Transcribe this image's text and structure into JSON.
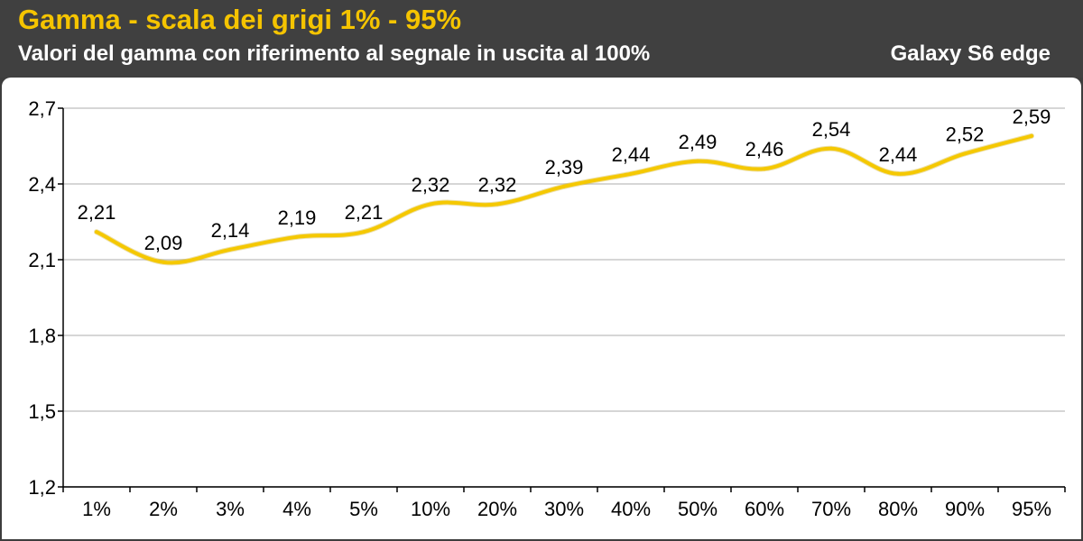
{
  "header": {
    "title": "Gamma - scala dei grigi 1% - 95%",
    "subtitle": "Valori del gamma con riferimento al segnale in uscita al 100%",
    "device": "Galaxy S6 edge"
  },
  "colors": {
    "header_bg": "#404040",
    "title": "#f5c400",
    "line": "#f5c800",
    "grid": "#c8c8c8"
  },
  "chart_data": {
    "type": "line",
    "title": "Gamma - scala dei grigi 1% - 95%",
    "subtitle": "Valori del gamma con riferimento al segnale in uscita al 100%",
    "categories": [
      "1%",
      "2%",
      "3%",
      "4%",
      "5%",
      "10%",
      "20%",
      "30%",
      "40%",
      "50%",
      "60%",
      "70%",
      "80%",
      "90%",
      "95%"
    ],
    "series": [
      {
        "name": "Galaxy S6 edge",
        "values": [
          2.21,
          2.09,
          2.14,
          2.19,
          2.21,
          2.32,
          2.32,
          2.39,
          2.44,
          2.49,
          2.46,
          2.54,
          2.44,
          2.52,
          2.59
        ],
        "labels": [
          "2,21",
          "2,09",
          "2,14",
          "2,19",
          "2,21",
          "2,32",
          "2,32",
          "2,39",
          "2,44",
          "2,49",
          "2,46",
          "2,54",
          "2,44",
          "2,52",
          "2,59"
        ]
      }
    ],
    "ylim": [
      1.2,
      2.7
    ],
    "yticks": [
      1.2,
      1.5,
      1.8,
      2.1,
      2.4,
      2.7
    ],
    "ytick_labels": [
      "1,2",
      "1,5",
      "1,8",
      "2,1",
      "2,4",
      "2,7"
    ],
    "grid": true,
    "xlabel": "",
    "ylabel": ""
  }
}
